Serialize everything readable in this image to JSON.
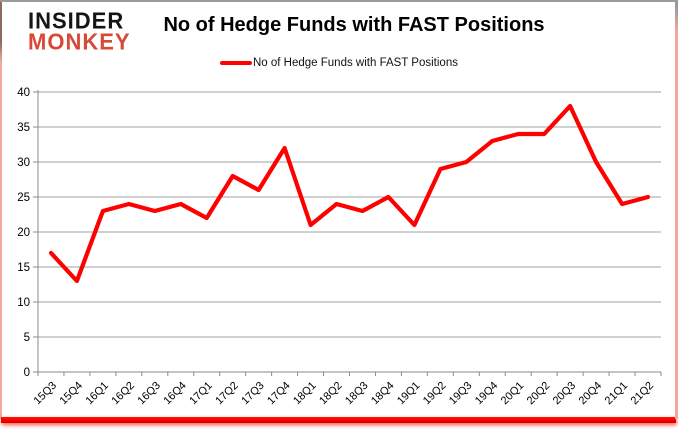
{
  "branding": {
    "line1": "INSIDER",
    "line2": "MONKEY",
    "monkey_color": "#d64a37"
  },
  "chart_data": {
    "type": "line",
    "title": "No of Hedge Funds with FAST Positions",
    "legend": [
      "No of Hedge Funds with FAST Positions"
    ],
    "legend_position": "top-center",
    "categories": [
      "15Q3",
      "15Q4",
      "16Q1",
      "16Q2",
      "16Q3",
      "16Q4",
      "17Q1",
      "17Q2",
      "17Q3",
      "17Q4",
      "18Q1",
      "18Q2",
      "18Q3",
      "18Q4",
      "19Q1",
      "19Q2",
      "19Q3",
      "19Q4",
      "20Q1",
      "20Q2",
      "20Q3",
      "20Q4",
      "21Q1",
      "21Q2"
    ],
    "series": [
      {
        "name": "No of Hedge Funds with FAST Positions",
        "color": "#fe0000",
        "values": [
          17,
          13,
          23,
          24,
          23,
          24,
          22,
          28,
          26,
          32,
          21,
          24,
          23,
          25,
          21,
          29,
          30,
          33,
          34,
          34,
          38,
          30,
          24,
          25
        ]
      }
    ],
    "xlabel": "",
    "ylabel": "",
    "ylim": [
      0,
      40
    ],
    "ytick_step": 5,
    "yticks": [
      0,
      5,
      10,
      15,
      20,
      25,
      30,
      35,
      40
    ],
    "grid": "horizontal"
  },
  "colors": {
    "gridline": "#a0a0a0",
    "axis": "#8a8a8a",
    "tick_label": "#000000",
    "background": "#ffffff",
    "accent_red": "#fe0000"
  }
}
